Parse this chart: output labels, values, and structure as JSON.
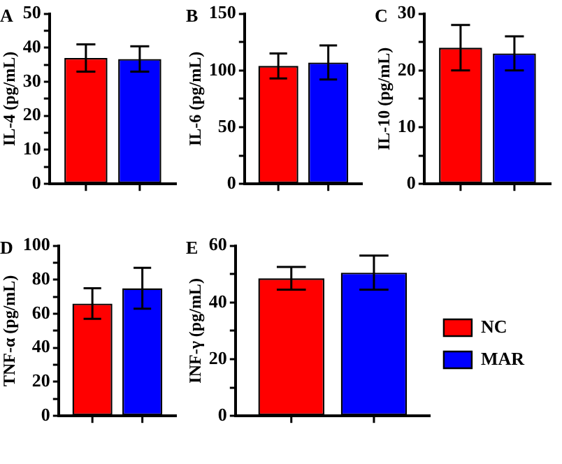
{
  "chart_data": [
    {
      "type": "bar",
      "title": "A",
      "ylabel": "IL-4 (pg/mL)",
      "categories": [
        null
      ],
      "ylim": [
        0,
        50
      ],
      "yticks": [
        0,
        {
          "value": 5,
          "label": null
        },
        10,
        {
          "value": 15,
          "label": null
        },
        20,
        {
          "value": 25,
          "label": null
        },
        30,
        {
          "value": 35,
          "label": null
        },
        40,
        {
          "value": 45,
          "label": null
        },
        50
      ],
      "grid": false,
      "legend": false,
      "series": [
        {
          "color": "#ff0000",
          "values": [
            37
          ],
          "errors": [
            4
          ]
        },
        {
          "color": "#0000ff",
          "values": [
            36.7
          ],
          "errors": [
            3.7
          ]
        }
      ]
    },
    {
      "type": "bar",
      "title": "B",
      "ylabel": "IL-6 (pg/mL)",
      "categories": [
        null
      ],
      "ylim": [
        0,
        150
      ],
      "yticks": [
        0,
        {
          "value": 25,
          "label": null
        },
        50,
        {
          "value": 75,
          "label": null
        },
        100,
        {
          "value": 125,
          "label": null
        },
        150
      ],
      "grid": false,
      "legend": false,
      "series": [
        {
          "color": "#ff0000",
          "values": [
            104
          ],
          "errors": [
            11
          ]
        },
        {
          "color": "#0000ff",
          "values": [
            107
          ],
          "errors": [
            15
          ]
        }
      ]
    },
    {
      "type": "bar",
      "title": "C",
      "ylabel": "IL-10 (pg/mL)",
      "categories": [
        null
      ],
      "ylim": [
        0,
        30
      ],
      "yticks": [
        0,
        {
          "value": 5,
          "label": null
        },
        10,
        {
          "value": 15,
          "label": null
        },
        20,
        {
          "value": 25,
          "label": null
        },
        30
      ],
      "grid": false,
      "legend": false,
      "series": [
        {
          "color": "#ff0000",
          "values": [
            24
          ],
          "errors": [
            4
          ]
        },
        {
          "color": "#0000ff",
          "values": [
            23
          ],
          "errors": [
            3
          ]
        }
      ]
    },
    {
      "type": "bar",
      "title": "D",
      "ylabel": "TNF-α (pg/mL)",
      "categories": [
        null
      ],
      "ylim": [
        0,
        100
      ],
      "yticks": [
        0,
        {
          "value": 10,
          "label": null
        },
        20,
        {
          "value": 30,
          "label": null
        },
        40,
        {
          "value": 50,
          "label": null
        },
        60,
        {
          "value": 70,
          "label": null
        },
        80,
        {
          "value": 90,
          "label": null
        },
        100
      ],
      "grid": false,
      "legend": false,
      "series": [
        {
          "color": "#ff0000",
          "values": [
            66
          ],
          "errors": [
            9
          ]
        },
        {
          "color": "#0000ff",
          "values": [
            75
          ],
          "errors": [
            12
          ]
        }
      ]
    },
    {
      "type": "bar",
      "title": "E",
      "ylabel": "INF-γ (pg/mL)",
      "categories": [
        null
      ],
      "ylim": [
        0,
        60
      ],
      "yticks": [
        0,
        {
          "value": 10,
          "label": null
        },
        20,
        {
          "value": 30,
          "label": null
        },
        40,
        {
          "value": 50,
          "label": null
        },
        60
      ],
      "grid": false,
      "legend": "right",
      "series": [
        {
          "name": "NC",
          "color": "#ff0000",
          "values": [
            48.5
          ],
          "errors": [
            4
          ]
        },
        {
          "name": "MAR",
          "color": "#0000ff",
          "values": [
            50.5
          ],
          "errors": [
            6
          ]
        }
      ]
    }
  ]
}
